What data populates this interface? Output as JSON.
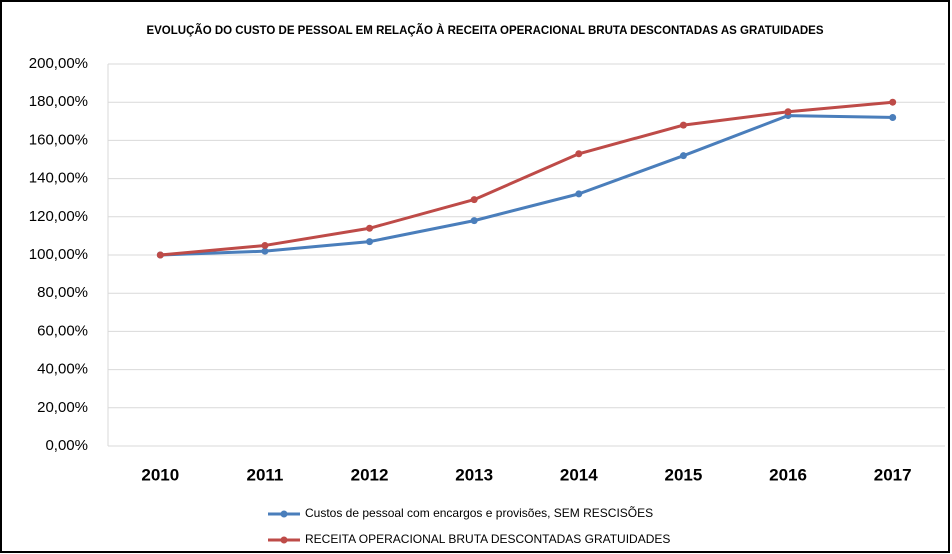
{
  "chart_data": {
    "type": "line",
    "title": "EVOLUÇÃO DO CUSTO DE PESSOAL EM RELAÇÃO À RECEITA OPERACIONAL BRUTA DESCONTADAS AS GRATUIDADES",
    "categories": [
      "2010",
      "2011",
      "2012",
      "2013",
      "2014",
      "2015",
      "2016",
      "2017"
    ],
    "series": [
      {
        "name": "Custos de pessoal com encargos e provisões, SEM RESCISÕES",
        "color": "#4a7ebb",
        "values": [
          100,
          102,
          107,
          118,
          132,
          152,
          173,
          172
        ]
      },
      {
        "name": "RECEITA OPERACIONAL BRUTA DESCONTADAS GRATUIDADES",
        "color": "#be4b48",
        "values": [
          100,
          105,
          114,
          129,
          153,
          168,
          175,
          180
        ]
      }
    ],
    "ylim": [
      0,
      200
    ],
    "yticks": [
      {
        "value": 0,
        "label": "0,00%"
      },
      {
        "value": 20,
        "label": "20,00%"
      },
      {
        "value": 40,
        "label": "40,00%"
      },
      {
        "value": 60,
        "label": "60,00%"
      },
      {
        "value": 80,
        "label": "80,00%"
      },
      {
        "value": 100,
        "label": "100,00%"
      },
      {
        "value": 120,
        "label": "120,00%"
      },
      {
        "value": 140,
        "label": "140,00%"
      },
      {
        "value": 160,
        "label": "160,00%"
      },
      {
        "value": 180,
        "label": "180,00%"
      },
      {
        "value": 200,
        "label": "200,00%"
      }
    ],
    "grid": true,
    "legend": "bottom"
  }
}
